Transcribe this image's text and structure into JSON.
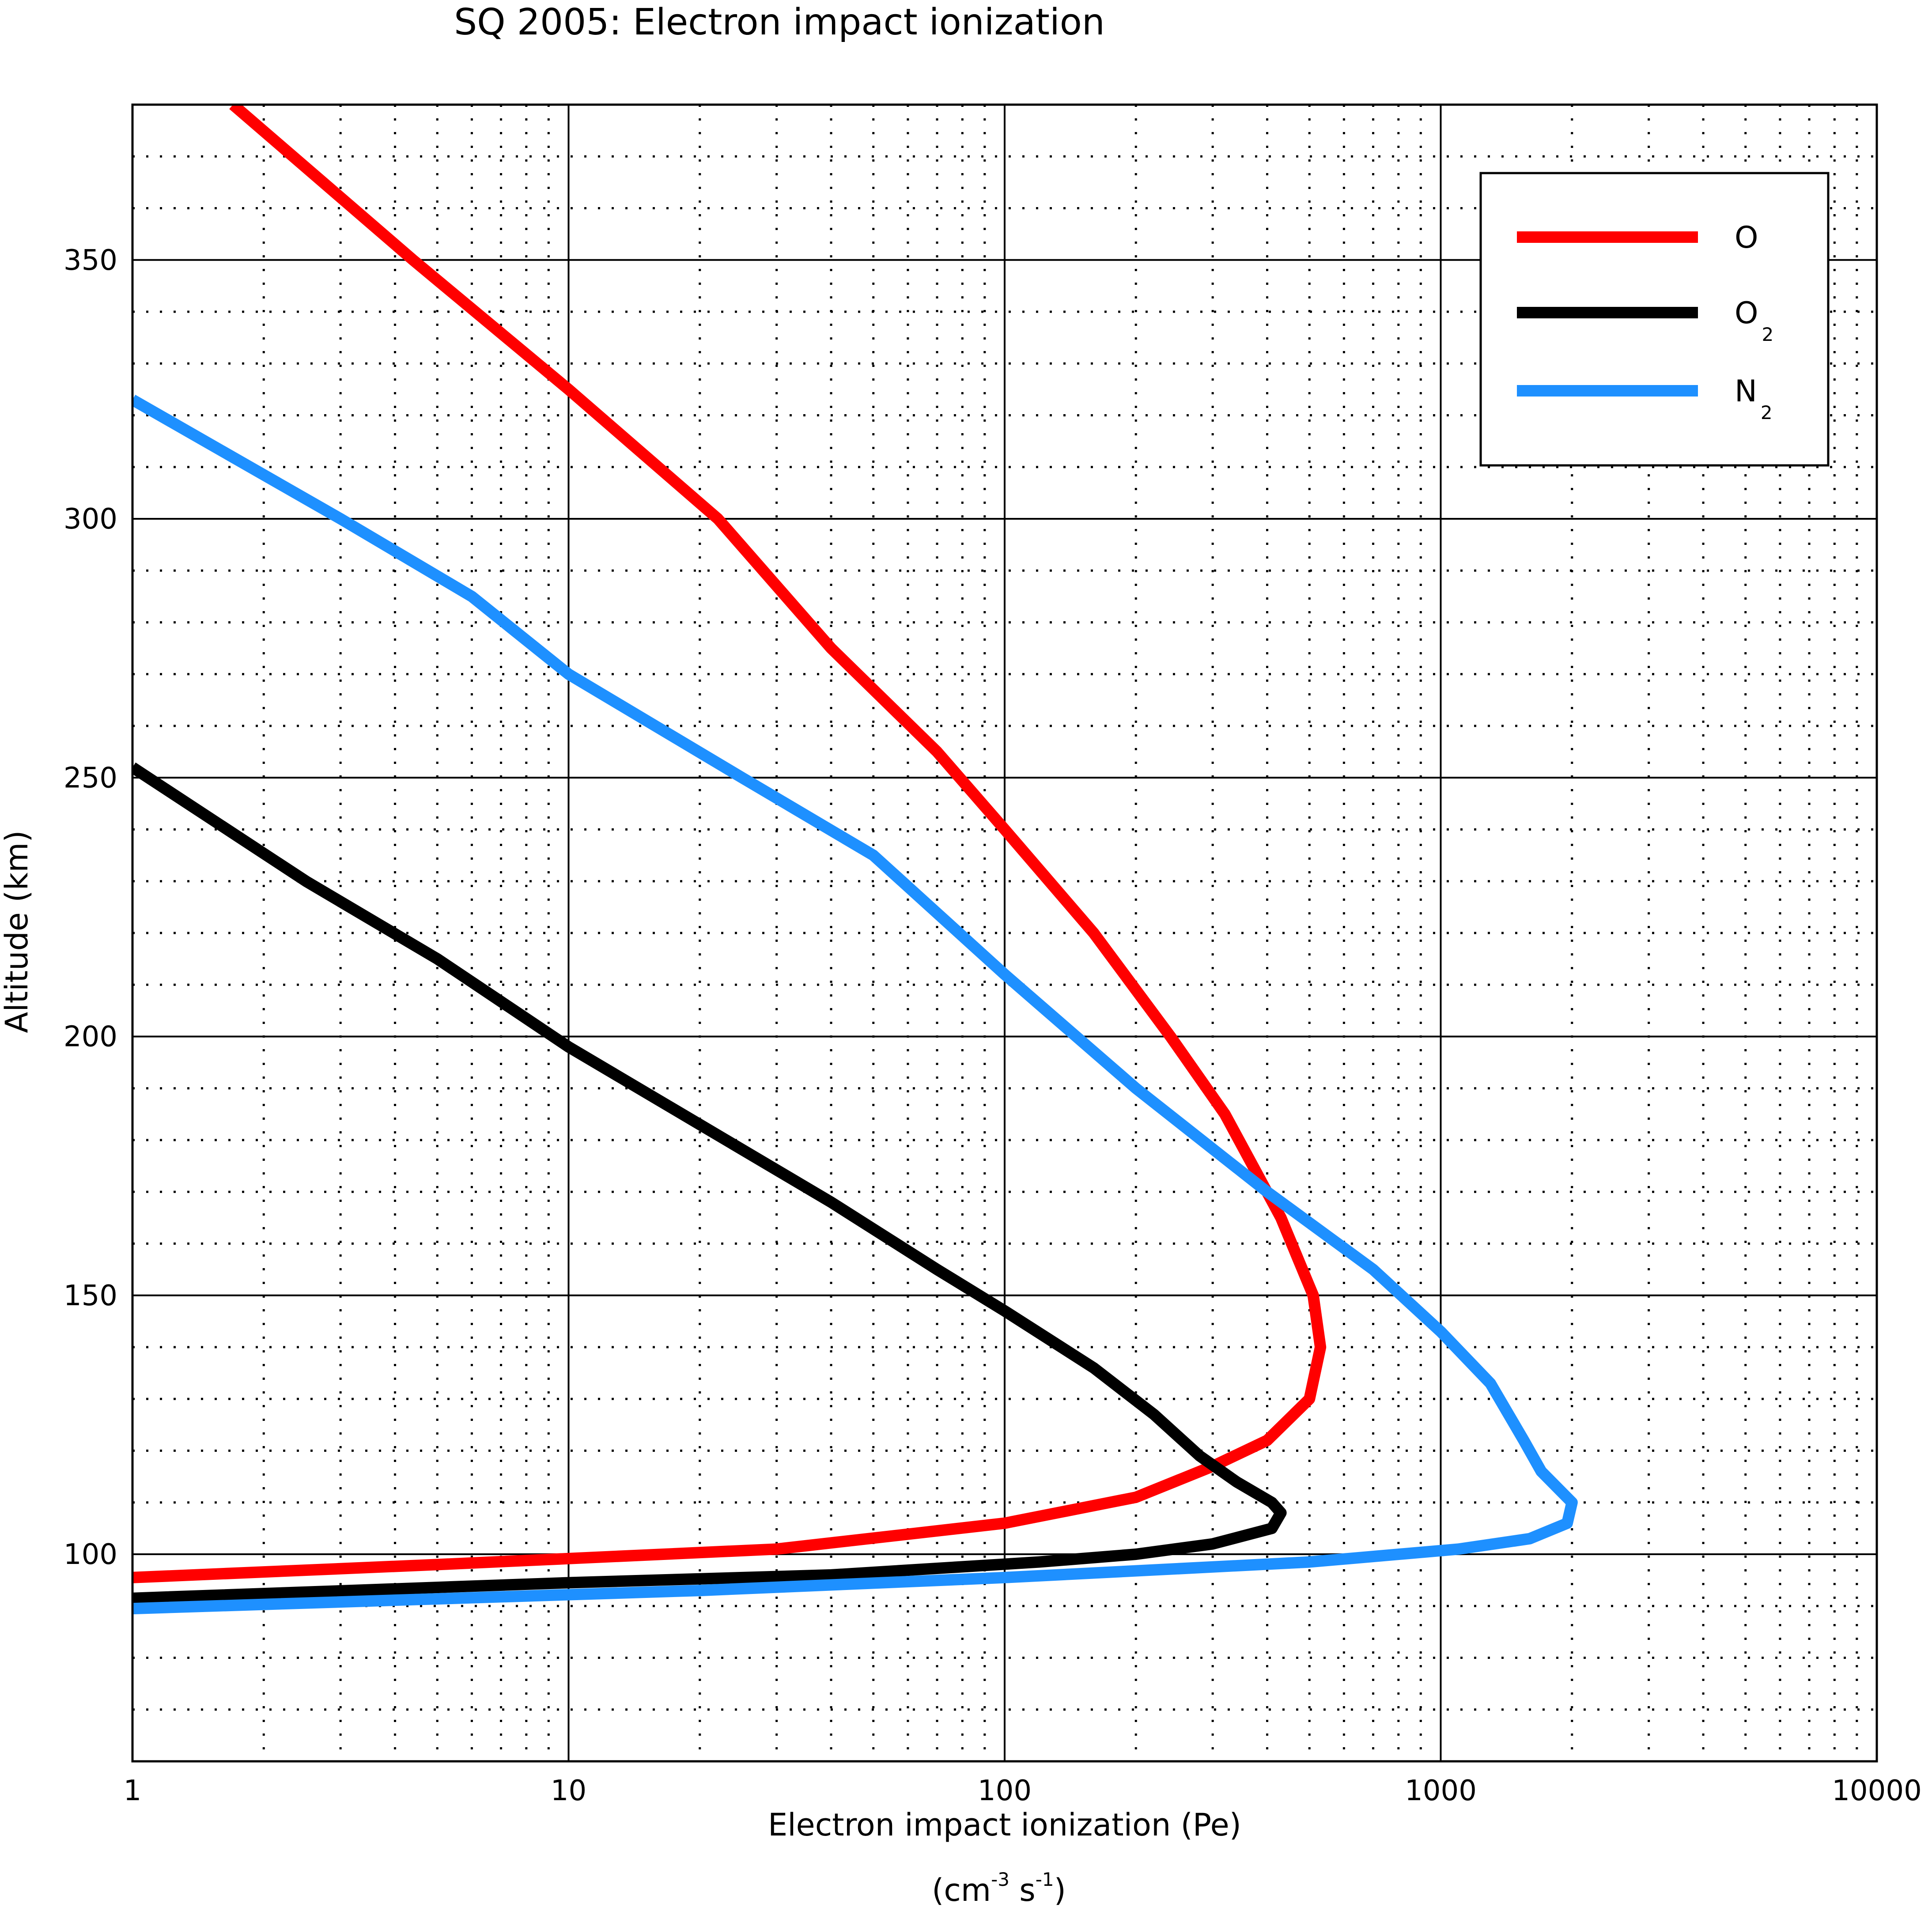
{
  "chart_data": {
    "type": "line",
    "title": "SQ 2005: Electron impact ionization",
    "xlabel": "Electron impact ionization (Pe)",
    "xlabel_units": {
      "open": "(cm",
      "sup1": "-3",
      "mid": " s",
      "sup2": "-1",
      "close": ")"
    },
    "ylabel": "Altitude (km)",
    "xscale": "log",
    "xlim": [
      1,
      10000
    ],
    "ylim": [
      60,
      380
    ],
    "x_ticks": [
      1,
      10,
      100,
      1000,
      10000
    ],
    "x_tick_labels": [
      "1",
      "10",
      "100",
      "1000",
      "10000"
    ],
    "y_ticks": [
      100,
      150,
      200,
      250,
      300,
      350
    ],
    "y_tick_labels": [
      "100",
      "150",
      "200",
      "250",
      "300",
      "350"
    ],
    "grid": "major solid, minor dotted",
    "legend_position": "top-right",
    "series": [
      {
        "name": "O",
        "color": "#ff0000",
        "points": [
          [
            1.7,
            380
          ],
          [
            4.4,
            350
          ],
          [
            10,
            325
          ],
          [
            22,
            300
          ],
          [
            40,
            275
          ],
          [
            70,
            255
          ],
          [
            100,
            240
          ],
          [
            160,
            220
          ],
          [
            240,
            200
          ],
          [
            320,
            185
          ],
          [
            430,
            165
          ],
          [
            510,
            150
          ],
          [
            530,
            140
          ],
          [
            500,
            130
          ],
          [
            400,
            122
          ],
          [
            300,
            117
          ],
          [
            200,
            111
          ],
          [
            100,
            106
          ],
          [
            30,
            101
          ],
          [
            5,
            98
          ],
          [
            1,
            95.5
          ]
        ]
      },
      {
        "name": "O",
        "sub": "2",
        "color": "#000000",
        "points": [
          [
            1,
            252
          ],
          [
            2.5,
            230
          ],
          [
            5,
            215
          ],
          [
            10,
            198
          ],
          [
            20,
            183
          ],
          [
            40,
            168
          ],
          [
            70,
            155
          ],
          [
            100,
            147
          ],
          [
            160,
            136
          ],
          [
            220,
            127
          ],
          [
            280,
            119
          ],
          [
            340,
            114
          ],
          [
            410,
            110
          ],
          [
            430,
            108
          ],
          [
            410,
            105
          ],
          [
            300,
            102
          ],
          [
            200,
            100
          ],
          [
            120,
            98.5
          ],
          [
            40,
            96
          ],
          [
            10,
            94.5
          ],
          [
            1,
            91.5
          ]
        ]
      },
      {
        "name": "N",
        "sub": "2",
        "color": "#1e90ff",
        "points": [
          [
            1,
            323
          ],
          [
            3,
            300
          ],
          [
            6,
            285
          ],
          [
            10,
            270
          ],
          [
            25,
            250
          ],
          [
            50,
            235
          ],
          [
            100,
            212
          ],
          [
            200,
            190
          ],
          [
            400,
            170
          ],
          [
            700,
            155
          ],
          [
            1000,
            143
          ],
          [
            1300,
            133
          ],
          [
            1550,
            122
          ],
          [
            1700,
            116
          ],
          [
            2000,
            110
          ],
          [
            1950,
            106
          ],
          [
            1600,
            103
          ],
          [
            1100,
            101
          ],
          [
            500,
            98.5
          ],
          [
            100,
            95.5
          ],
          [
            20,
            93
          ],
          [
            1,
            89.5
          ]
        ]
      }
    ]
  }
}
